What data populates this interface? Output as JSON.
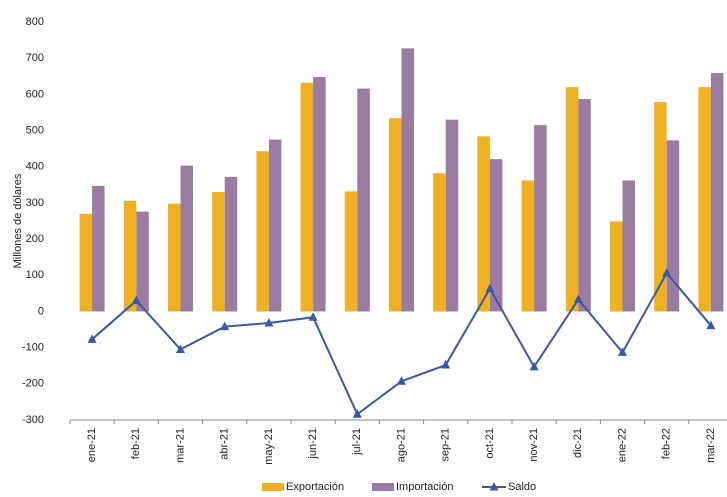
{
  "chart_data": {
    "type": "bar-line",
    "y_label": "Millones de dólares",
    "categories": [
      "ene-21",
      "feb-21",
      "mar-21",
      "abr-21",
      "may-21",
      "jun-21",
      "jul-21",
      "ago-21",
      "sep-21",
      "oct-21",
      "nov-21",
      "dic-21",
      "ene-22",
      "feb-22",
      "mar-22"
    ],
    "series": [
      {
        "name": "Exportación",
        "type": "bar",
        "color": "#efb122",
        "values": [
          270,
          306,
          298,
          330,
          443,
          632,
          332,
          534,
          382,
          484,
          362,
          620,
          249,
          579,
          620
        ]
      },
      {
        "name": "Importación",
        "type": "bar",
        "color": "#9a7ca3",
        "values": [
          347,
          276,
          403,
          372,
          475,
          648,
          616,
          727,
          530,
          421,
          515,
          587,
          362,
          473,
          659
        ]
      },
      {
        "name": "Saldo",
        "type": "line",
        "color": "#3a58a5",
        "values": [
          -77,
          30,
          -105,
          -42,
          -32,
          -16,
          -284,
          -193,
          -148,
          63,
          -153,
          33,
          -113,
          106,
          -39
        ]
      }
    ],
    "ylim": [
      -300,
      800
    ],
    "yticks": [
      -300,
      -200,
      -100,
      0,
      100,
      200,
      300,
      400,
      500,
      600,
      700,
      800
    ]
  }
}
